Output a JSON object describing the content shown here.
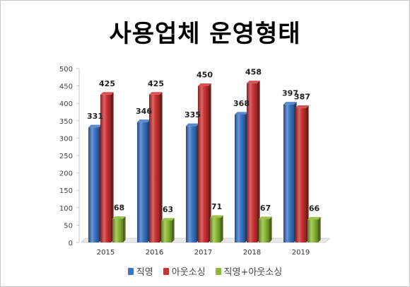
{
  "chart_data": {
    "type": "bar",
    "title": "사용업체 운영형태",
    "categories": [
      "2015",
      "2016",
      "2017",
      "2018",
      "2019"
    ],
    "series": [
      {
        "name": "직영",
        "values": [
          331,
          346,
          335,
          368,
          397
        ],
        "color": "#3a74c4"
      },
      {
        "name": "아웃소싱",
        "values": [
          425,
          425,
          450,
          458,
          387
        ],
        "color": "#cc3333"
      },
      {
        "name": "직영+아웃소싱",
        "values": [
          68,
          63,
          71,
          67,
          66
        ],
        "color": "#8cba34"
      }
    ],
    "yticks": [
      "0",
      "50",
      "100",
      "150",
      "200",
      "250",
      "300",
      "350",
      "400",
      "450",
      "500"
    ],
    "ylim": [
      0,
      500
    ],
    "legend_position": "bottom",
    "style": "3d-cylinder-bars"
  }
}
